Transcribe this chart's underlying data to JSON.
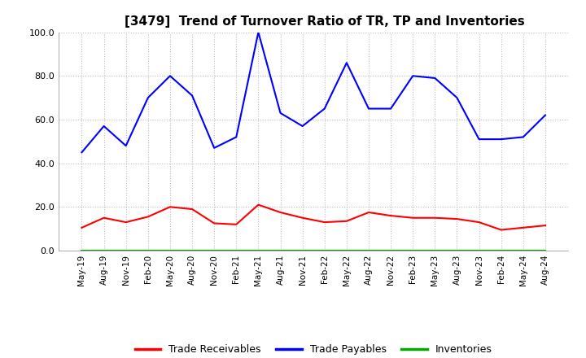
{
  "title": "[3479]  Trend of Turnover Ratio of TR, TP and Inventories",
  "xlabels": [
    "May-19",
    "Aug-19",
    "Nov-19",
    "Feb-20",
    "May-20",
    "Aug-20",
    "Nov-20",
    "Feb-21",
    "May-21",
    "Aug-21",
    "Nov-21",
    "Feb-22",
    "May-22",
    "Aug-22",
    "Nov-22",
    "Feb-23",
    "May-23",
    "Aug-23",
    "Nov-23",
    "Feb-24",
    "May-24",
    "Aug-24"
  ],
  "trade_receivables": [
    10.5,
    15.0,
    13.0,
    15.5,
    20.0,
    19.0,
    12.5,
    12.0,
    21.0,
    17.5,
    15.0,
    13.0,
    13.5,
    17.5,
    16.0,
    15.0,
    15.0,
    14.5,
    13.0,
    9.5,
    10.5,
    11.5
  ],
  "trade_payables": [
    45.0,
    57.0,
    48.0,
    70.0,
    80.0,
    71.0,
    47.0,
    52.0,
    100.0,
    63.0,
    57.0,
    65.0,
    86.0,
    65.0,
    65.0,
    80.0,
    79.0,
    70.0,
    51.0,
    51.0,
    52.0,
    62.0
  ],
  "inventories": [
    0.0,
    0.0,
    0.0,
    0.0,
    0.0,
    0.0,
    0.0,
    0.0,
    0.0,
    0.0,
    0.0,
    0.0,
    0.0,
    0.0,
    0.0,
    0.0,
    0.0,
    0.0,
    0.0,
    0.0,
    0.0,
    0.0
  ],
  "tr_color": "#ff0000",
  "tp_color": "#0000ff",
  "inv_color": "#00aa00",
  "ylim": [
    0.0,
    100.0
  ],
  "yticks": [
    0.0,
    20.0,
    40.0,
    60.0,
    80.0,
    100.0
  ],
  "bg_color": "#ffffff",
  "plot_bg_color": "#ffffff",
  "grid_color": "#aaaaaa",
  "title_fontsize": 11,
  "legend_labels": [
    "Trade Receivables",
    "Trade Payables",
    "Inventories"
  ]
}
